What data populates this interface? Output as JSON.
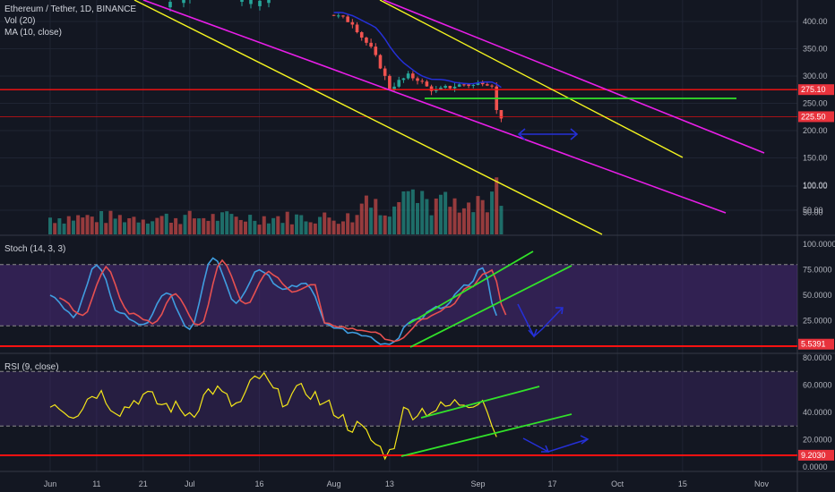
{
  "legend": {
    "main_title": "Ethereum / Tether, 1D, BINANCE",
    "vol": "Vol (20)",
    "ma": "MA (10, close)",
    "stoch": "Stoch (14, 3, 3)",
    "rsi": "RSI (9, close)"
  },
  "colors": {
    "background": "#131722",
    "grid": "#1f2433",
    "up_candle": "#26a69a",
    "down_candle": "#ef5350",
    "red_line": "#ff1111",
    "magenta_channel": "#e91ee8",
    "yellow_channel": "#f5f51f",
    "green_line": "#32e22a",
    "blue_arrow": "#2530d8",
    "stoch_k": "#3f9de0",
    "stoch_d": "#e65050",
    "stoch_band": "#4a2a7a",
    "rsi_line": "#f4e619",
    "price_tag": "#e8323c"
  },
  "chart_data": [
    {
      "type": "candlestick",
      "title": "Ethereum / Tether, 1D, BINANCE",
      "y_ticks": [
        "400.00",
        "350.00",
        "300.00",
        "250.00",
        "200.00",
        "150.00",
        "100.00",
        "50.00"
      ],
      "horizontal_levels": [
        275.1,
        225.5
      ],
      "price_tags": [
        "275.10",
        "225.50"
      ],
      "close_path_aug_sep": [
        [
          "Aug 1",
          412
        ],
        [
          "Aug 3",
          405
        ],
        [
          "Aug 5",
          398
        ],
        [
          "Aug 7",
          372
        ],
        [
          "Aug 9",
          350
        ],
        [
          "Aug 11",
          318
        ],
        [
          "Aug 13",
          278
        ],
        [
          "Aug 15",
          290
        ],
        [
          "Aug 17",
          300
        ],
        [
          "Aug 19",
          295
        ],
        [
          "Aug 21",
          280
        ],
        [
          "Aug 23",
          272
        ],
        [
          "Aug 25",
          278
        ],
        [
          "Aug 27",
          282
        ],
        [
          "Aug 29",
          285
        ],
        [
          "Aug 31",
          283
        ],
        [
          "Sep 2",
          290
        ],
        [
          "Sep 4",
          285
        ],
        [
          "Sep 5",
          236
        ],
        [
          "Sep 6",
          225.5
        ]
      ]
    },
    {
      "type": "bar",
      "title": "Vol (20)",
      "y_ticks": [
        "100.00",
        "50.00"
      ]
    },
    {
      "type": "line",
      "title": "Stoch (14, 3, 3)",
      "y_ticks": [
        "100.0000",
        "75.0000",
        "50.0000",
        "25.0000"
      ],
      "band": [
        20,
        80
      ],
      "value_tag": "5.5391",
      "k_path": [
        [
          "Jun 1",
          48
        ],
        [
          "Jun 6",
          30
        ],
        [
          "Jun 11",
          80
        ],
        [
          "Jun 16",
          32
        ],
        [
          "Jun 21",
          22
        ],
        [
          "Jun 26",
          52
        ],
        [
          "Jul 1",
          18
        ],
        [
          "Jul 6",
          88
        ],
        [
          "Jul 11",
          42
        ],
        [
          "Jul 16",
          75
        ],
        [
          "Jul 21",
          56
        ],
        [
          "Jul 26",
          62
        ],
        [
          "Jul 31",
          20
        ],
        [
          "Aug 5",
          14
        ],
        [
          "Aug 13",
          2
        ],
        [
          "Aug 18",
          25
        ],
        [
          "Aug 24",
          38
        ],
        [
          "Aug 30",
          60
        ],
        [
          "Sep 2",
          78
        ],
        [
          "Sep 5",
          30
        ]
      ]
    },
    {
      "type": "line",
      "title": "RSI (9, close)",
      "y_ticks": [
        "80.0000",
        "60.0000",
        "40.0000",
        "20.0000",
        "0.0000"
      ],
      "band": [
        30,
        70
      ],
      "value_tag": "9.2030",
      "path": [
        [
          "Jun 1",
          48
        ],
        [
          "Jun 6",
          40
        ],
        [
          "Jun 11",
          55
        ],
        [
          "Jun 16",
          42
        ],
        [
          "Jun 21",
          52
        ],
        [
          "Jun 26",
          45
        ],
        [
          "Jul 1",
          40
        ],
        [
          "Jul 6",
          57
        ],
        [
          "Jul 11",
          45
        ],
        [
          "Jul 16",
          66
        ],
        [
          "Jul 21",
          50
        ],
        [
          "Jul 26",
          56
        ],
        [
          "Jul 31",
          44
        ],
        [
          "Aug 5",
          30
        ],
        [
          "Aug 13",
          10
        ],
        [
          "Aug 16",
          40
        ],
        [
          "Aug 22",
          42
        ],
        [
          "Aug 30",
          48
        ],
        [
          "Sep 2",
          50
        ],
        [
          "Sep 5",
          22
        ]
      ]
    }
  ],
  "x_ticks": [
    "Jun",
    "11",
    "21",
    "Jul",
    "16",
    "Aug",
    "13",
    "Sep",
    "17",
    "Oct",
    "15",
    "Nov"
  ]
}
